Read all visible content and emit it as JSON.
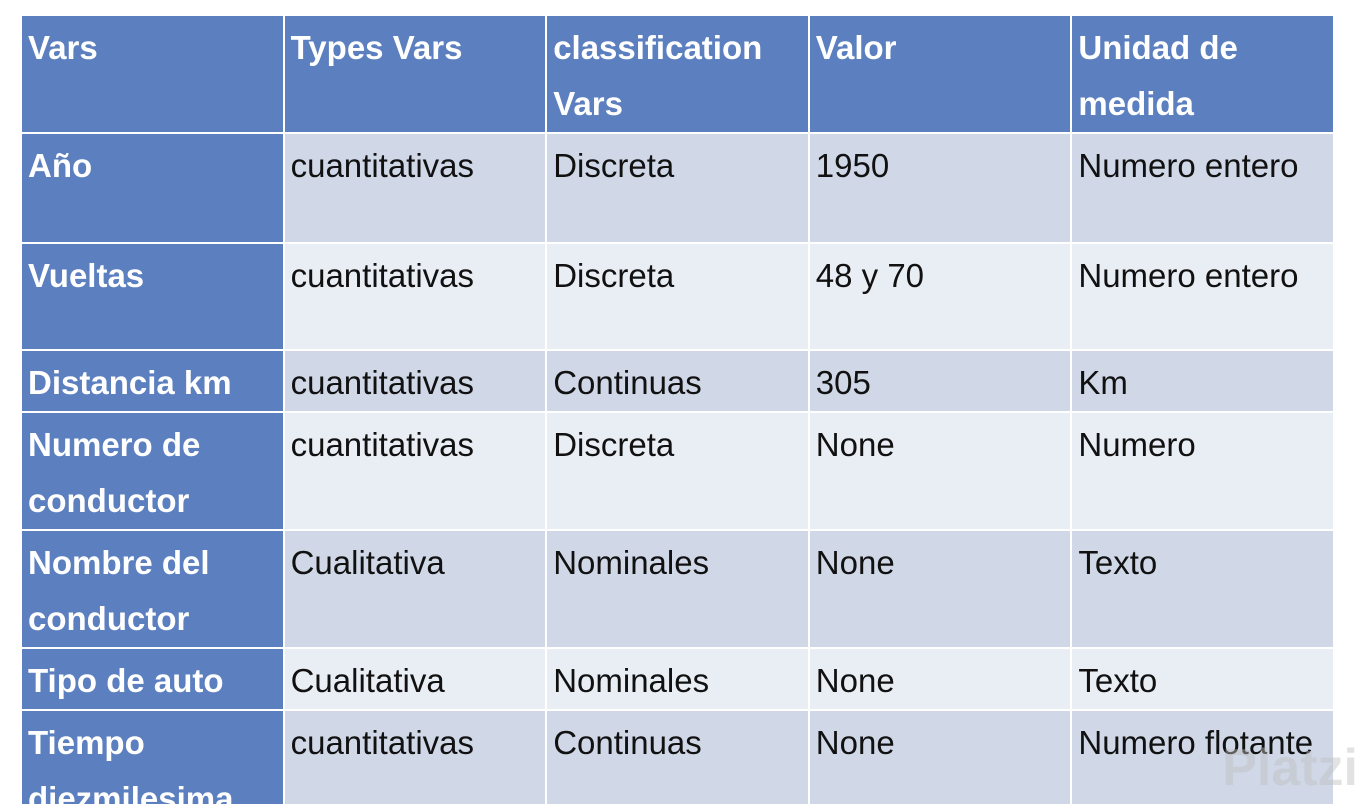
{
  "table": {
    "header": [
      "Vars",
      "Types Vars",
      "classification Vars",
      "Valor",
      "Unidad de medida"
    ],
    "rows": [
      [
        "Año",
        "cuantitativas",
        "Discreta",
        "1950",
        "Numero entero"
      ],
      [
        "Vueltas",
        "cuantitativas",
        "Discreta",
        "48 y 70",
        "Numero entero"
      ],
      [
        "Distancia km",
        "cuantitativas",
        "Continuas",
        "305",
        "Km"
      ],
      [
        "Numero de conductor",
        "cuantitativas",
        "Discreta",
        "None",
        "Numero"
      ],
      [
        "Nombre del conductor",
        "Cualitativa",
        "Nominales",
        "None",
        "Texto"
      ],
      [
        "Tipo de auto",
        "Cualitativa",
        "Nominales",
        "None",
        "Texto"
      ],
      [
        "Tiempo diezmilesima",
        "cuantitativas",
        "Continuas",
        "None",
        "Numero flotante"
      ]
    ]
  },
  "watermark": "Platzi"
}
